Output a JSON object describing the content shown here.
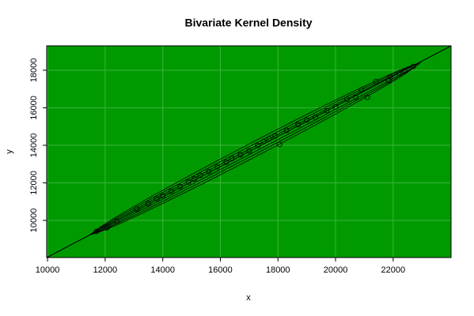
{
  "chart_data": {
    "type": "scatter",
    "title": "Bivariate Kernel Density",
    "x_label": "x",
    "y_label": "y",
    "background": "#009a00",
    "grid": true,
    "grid_color": "#3cb43c",
    "point_color": "#000000",
    "contour_color": "#000000",
    "xlim": [
      9970,
      24010
    ],
    "ylim": [
      8020,
      19300
    ],
    "xticks": [
      10000,
      12000,
      14000,
      16000,
      18000,
      20000,
      22000
    ],
    "yticks": [
      10000,
      12000,
      14000,
      16000,
      18000
    ],
    "fit_line": {
      "x": [
        9970,
        24010
      ],
      "y": [
        8020,
        19300
      ]
    },
    "x": [
      11700,
      12050,
      12100,
      12400,
      13100,
      13500,
      13800,
      14000,
      14300,
      14600,
      14900,
      15100,
      15300,
      15600,
      15900,
      16200,
      16400,
      16700,
      17000,
      17300,
      17500,
      17700,
      17900,
      18050,
      18300,
      18700,
      19000,
      19300,
      19700,
      20000,
      20400,
      20700,
      20900,
      21100,
      21400,
      21850,
      21900,
      22200,
      22400,
      22700
    ],
    "y": [
      9410,
      9600,
      9680,
      9950,
      10600,
      10900,
      11150,
      11300,
      11550,
      11800,
      12050,
      12200,
      12400,
      12600,
      12850,
      13100,
      13300,
      13500,
      13700,
      14000,
      14200,
      14350,
      14500,
      14050,
      14800,
      15100,
      15350,
      15500,
      15850,
      16050,
      16450,
      16550,
      16950,
      16550,
      17400,
      17450,
      17650,
      17850,
      17950,
      18200
    ]
  }
}
